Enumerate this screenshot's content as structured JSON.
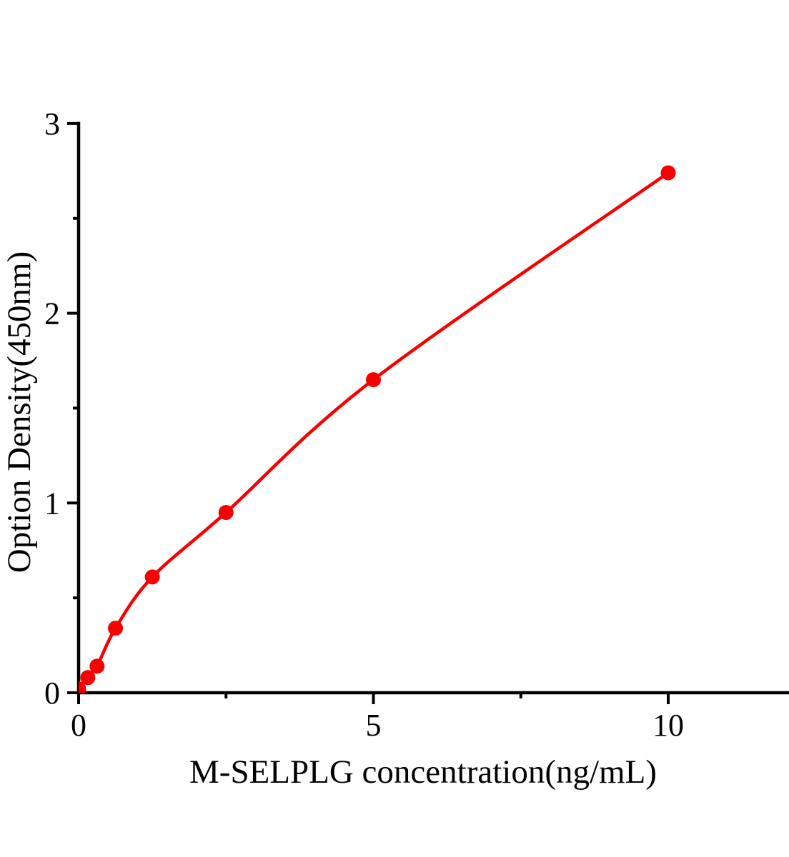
{
  "figure": {
    "background": "#ffffff",
    "axis_color": "#000000"
  },
  "chart_data": {
    "type": "line",
    "title": "",
    "xlabel": "M-SELPLG concentration(ng/mL)",
    "ylabel": "Option Density(450nm)",
    "x": [
      0,
      0.156,
      0.313,
      0.625,
      1.25,
      2.5,
      5,
      10
    ],
    "y": [
      0.02,
      0.08,
      0.14,
      0.34,
      0.61,
      0.95,
      1.65,
      2.74
    ],
    "xlim": [
      0,
      12.05
    ],
    "ylim": [
      0,
      3
    ],
    "x_major_ticks": [
      0,
      5,
      10
    ],
    "x_major_tick_labels": [
      "0",
      "5",
      "10"
    ],
    "x_minor_ticks": [
      2.5,
      7.5
    ],
    "y_major_ticks": [
      0,
      1,
      2,
      3
    ],
    "y_major_tick_labels": [
      "0",
      "1",
      "2",
      "3"
    ],
    "y_minor_ticks": [
      0.5,
      1.5,
      2.5
    ],
    "grid": "off",
    "legend": "none",
    "line_color": "#f80000",
    "marker_color": "#f80000",
    "marker_shape": "circle"
  }
}
